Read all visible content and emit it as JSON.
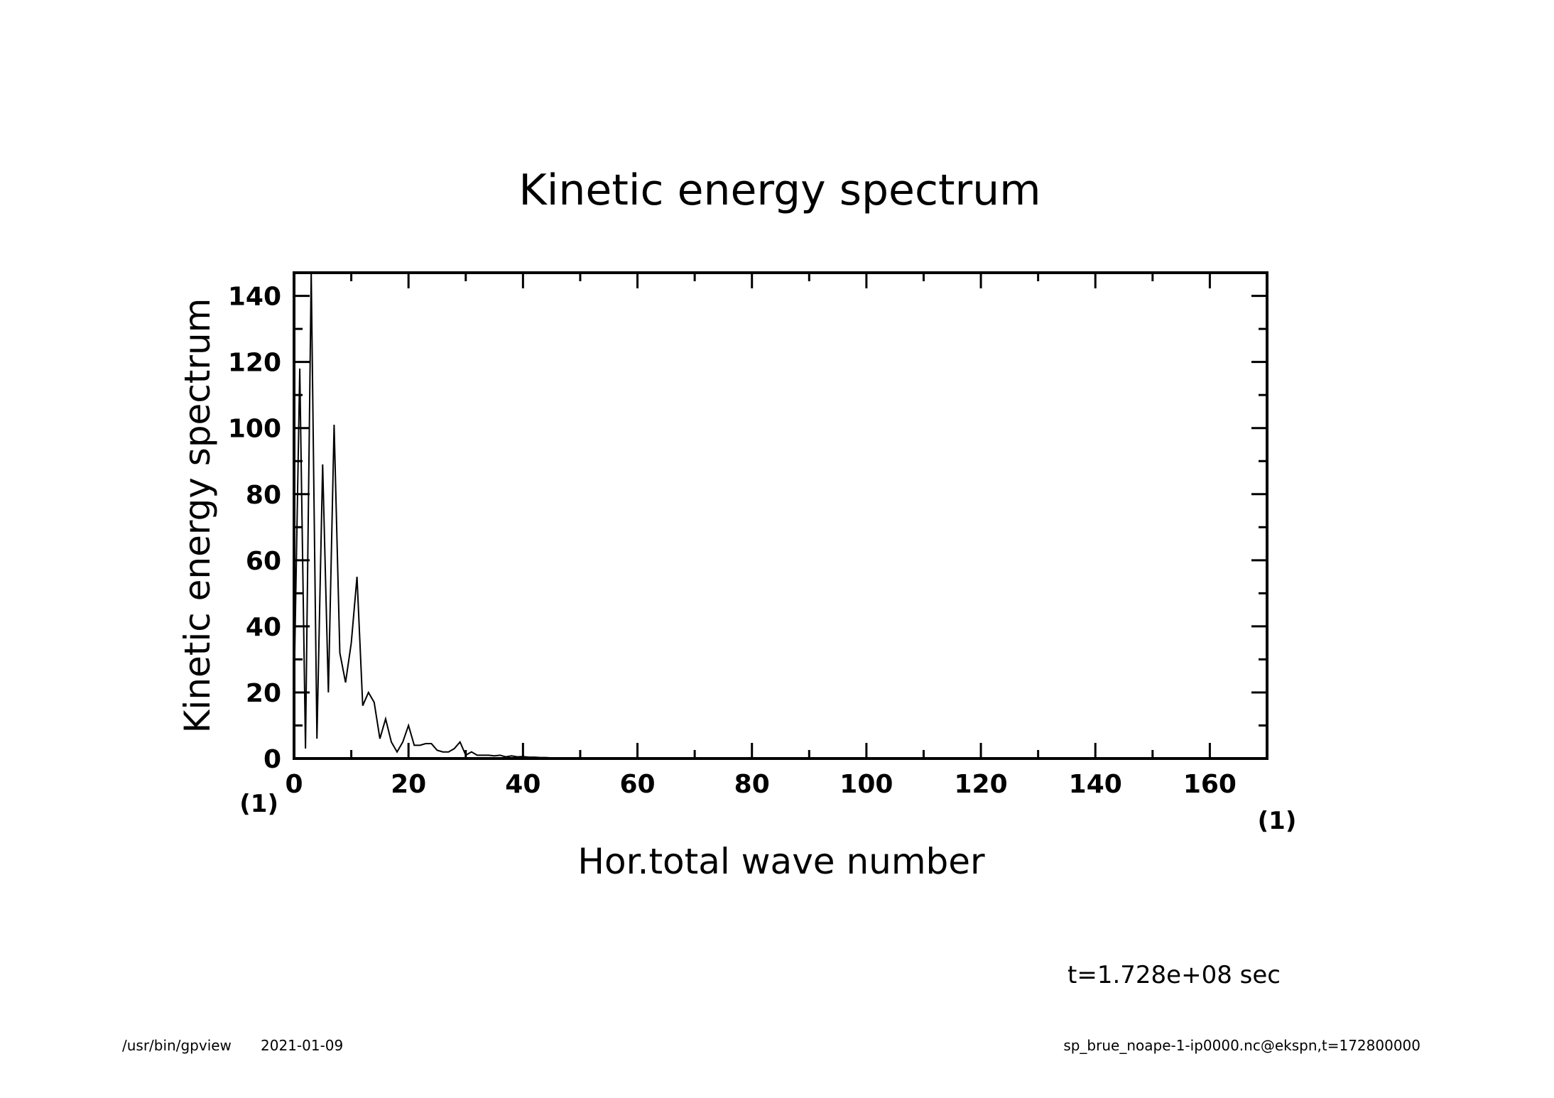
{
  "chart_data": {
    "type": "line",
    "title": "Kinetic energy spectrum",
    "xlabel": "Hor.total wave number",
    "ylabel": "Kinetic energy spectrum",
    "x_unit": "(1)",
    "y_unit": "(1)",
    "xlim": [
      0,
      170
    ],
    "ylim": [
      0,
      147
    ],
    "x_ticks": [
      0,
      20,
      40,
      60,
      80,
      100,
      120,
      140,
      160
    ],
    "y_ticks": [
      0,
      20,
      40,
      60,
      80,
      100,
      120,
      140
    ],
    "x_tick_labels": [
      "0",
      "20",
      "40",
      "60",
      "80",
      "100",
      "120",
      "140",
      "160"
    ],
    "y_tick_labels": [
      "0",
      "20",
      "40",
      "60",
      "80",
      "100",
      "120",
      "140"
    ],
    "grid": false,
    "series": [
      {
        "x": [
          0,
          1,
          2,
          3,
          4,
          5,
          6,
          7,
          8,
          9,
          10,
          11,
          12,
          13,
          14,
          15,
          16,
          17,
          18,
          19,
          20,
          21,
          22,
          23,
          24,
          25,
          26,
          27,
          28,
          29,
          30,
          31,
          32,
          33,
          34,
          35,
          36,
          37,
          38,
          39,
          40,
          41,
          42,
          43,
          44,
          45,
          50,
          55,
          60,
          70,
          80,
          90,
          100,
          110,
          120,
          130,
          140,
          150,
          160,
          170
        ],
        "y": [
          20,
          118,
          3,
          147,
          6,
          89,
          20,
          101,
          32,
          23,
          35,
          55,
          16,
          20,
          17,
          6,
          12,
          5,
          2,
          5,
          10,
          4,
          4,
          4.5,
          4.5,
          2.5,
          2,
          2,
          3,
          5,
          1,
          2,
          1,
          1,
          1,
          0.8,
          1,
          0.5,
          0.8,
          0.5,
          0.6,
          0.4,
          0.4,
          0.3,
          0.3,
          0.2,
          0.15,
          0.1,
          0.08,
          0.05,
          0.03,
          0.02,
          0.02,
          0.01,
          0.01,
          0.01,
          0.01,
          0.01,
          0.01,
          0.01
        ]
      }
    ]
  },
  "time_label": "t=1.728e+08 sec",
  "footer": {
    "left_path": "/usr/bin/gpview",
    "left_date": "2021-01-09",
    "right": "sp_brue_noape-1-ip0000.nc@ekspn,t=172800000"
  }
}
